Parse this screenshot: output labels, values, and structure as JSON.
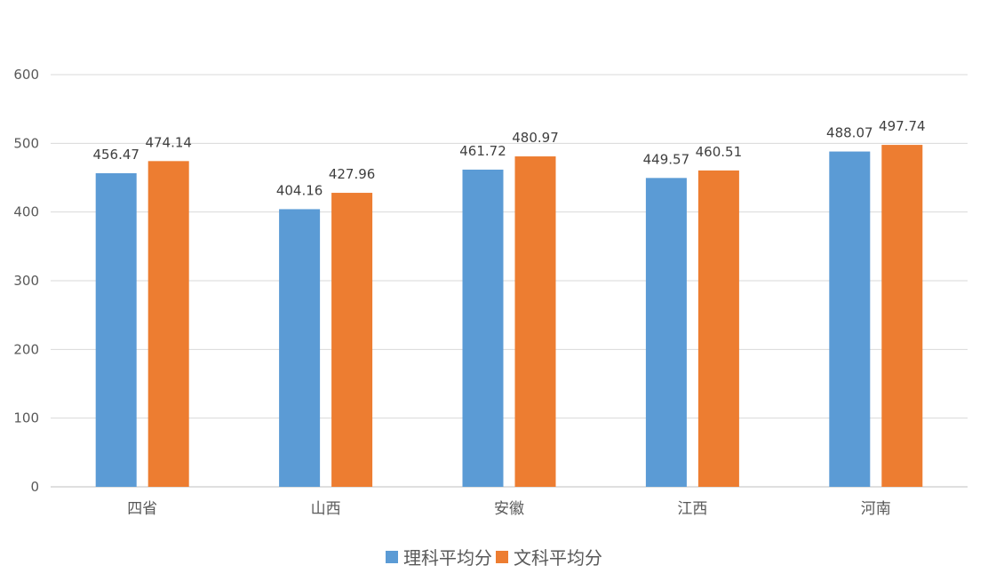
{
  "chart_data": {
    "type": "bar",
    "categories": [
      "四省",
      "山西",
      "安徽",
      "江西",
      "河南"
    ],
    "series": [
      {
        "name": "理科平均分",
        "color": "#5B9BD5",
        "values": [
          456.47,
          404.16,
          461.72,
          449.57,
          488.07
        ]
      },
      {
        "name": "文科平均分",
        "color": "#ED7D31",
        "values": [
          474.14,
          427.96,
          480.97,
          460.51,
          497.74
        ]
      }
    ],
    "ylim": [
      0,
      600
    ],
    "yticks": [
      0,
      100,
      200,
      300,
      400,
      500,
      600
    ],
    "grid": true,
    "legend_position": "bottom",
    "title": "",
    "xlabel": "",
    "ylabel": ""
  }
}
